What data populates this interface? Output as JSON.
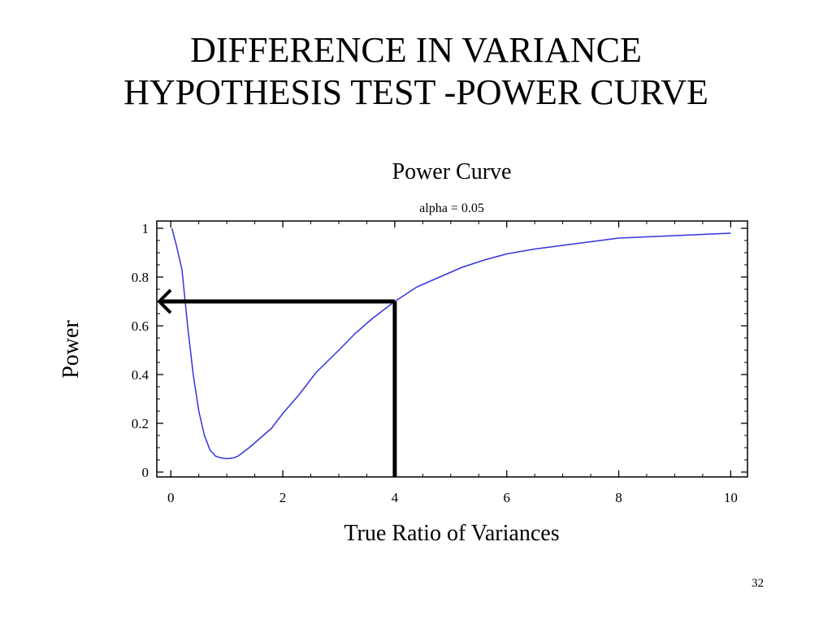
{
  "slide": {
    "title_line1": "DIFFERENCE IN VARIANCE",
    "title_line2": "HYPOTHESIS TEST -POWER CURVE",
    "page_number": "32"
  },
  "colors": {
    "curve": "#3333dd",
    "annotation": "#000000",
    "axes": "#000000"
  },
  "chart_data": {
    "type": "line",
    "title": "Power Curve",
    "subtitle": "alpha = 0.05",
    "xlabel": "True Ratio of Variances",
    "ylabel": "Power",
    "xlim": [
      -0.25,
      10.3
    ],
    "ylim": [
      -0.02,
      1.03
    ],
    "xticks": [
      0,
      2,
      4,
      6,
      8,
      10
    ],
    "xtick_labels": [
      "0",
      "2",
      "4",
      "6",
      "8",
      "10"
    ],
    "yticks": [
      0,
      0.2,
      0.4,
      0.6,
      0.8,
      1
    ],
    "ytick_labels": [
      "0",
      "0.2",
      "0.4",
      "0.6",
      "0.8",
      "1"
    ],
    "grid": false,
    "series": [
      {
        "x": [
          0.02,
          0.1,
          0.2,
          0.3,
          0.4,
          0.5,
          0.6,
          0.7,
          0.8,
          0.9,
          1.0,
          1.1,
          1.2,
          1.4,
          1.6,
          1.8,
          2.0,
          2.3,
          2.6,
          3.0,
          3.3,
          3.6,
          4.0,
          4.4,
          4.8,
          5.2,
          5.6,
          6.0,
          6.5,
          7.0,
          7.5,
          8.0,
          8.5,
          9.0,
          9.5,
          10.0
        ],
        "y": [
          1.0,
          0.93,
          0.83,
          0.6,
          0.4,
          0.25,
          0.15,
          0.09,
          0.065,
          0.058,
          0.055,
          0.057,
          0.065,
          0.1,
          0.14,
          0.18,
          0.24,
          0.32,
          0.41,
          0.5,
          0.57,
          0.63,
          0.7,
          0.76,
          0.8,
          0.84,
          0.87,
          0.895,
          0.915,
          0.93,
          0.945,
          0.96,
          0.965,
          0.97,
          0.975,
          0.98
        ]
      }
    ],
    "annotation": {
      "x": 4,
      "y": 0.7
    }
  }
}
